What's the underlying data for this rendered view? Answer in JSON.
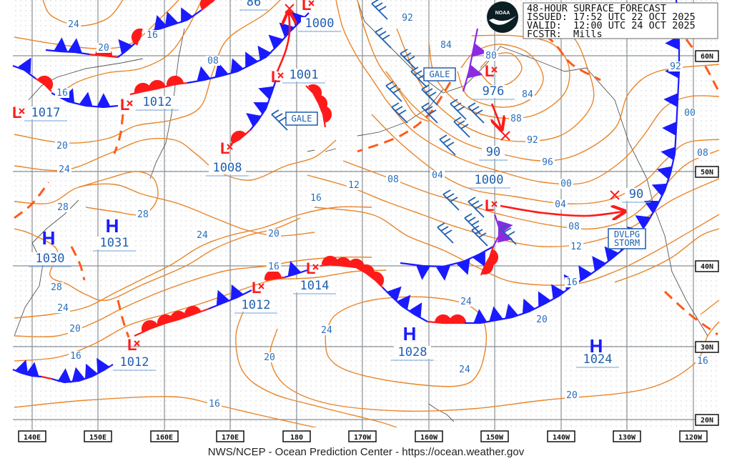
{
  "header": {
    "title": "48-HOUR SURFACE FORECAST",
    "issued": "ISSUED: 17:52 UTC 22 OCT 2025",
    "valid": "VALID:  12:00 UTC 24 OCT 2025",
    "forecaster": "FCSTR:  Mills"
  },
  "logo_text": "NOAA",
  "footer": "NWS/NCEP - Ocean Prediction Center - https://ocean.weather.gov",
  "longitude_labels": [
    "140E",
    "150E",
    "160E",
    "170E",
    "180",
    "170W",
    "160W",
    "150W",
    "140W",
    "130W",
    "120W"
  ],
  "latitude_labels": [
    "60N",
    "50N",
    "40N",
    "30N",
    "20N"
  ],
  "pressure_centers": [
    {
      "symbol": "L",
      "value": "1017"
    },
    {
      "symbol": "L",
      "value": "1012"
    },
    {
      "symbol": "L",
      "value": "1001"
    },
    {
      "symbol": "L",
      "value": "1008"
    },
    {
      "symbol": "L",
      "value": "1000"
    },
    {
      "symbol": "L",
      "value": "976"
    },
    {
      "symbol": "L",
      "value": "1000"
    },
    {
      "symbol": "L",
      "value": "1012"
    },
    {
      "symbol": "L",
      "value": "1012"
    },
    {
      "symbol": "L",
      "value": "1014"
    },
    {
      "symbol": "H",
      "value": "1030"
    },
    {
      "symbol": "H",
      "value": "1031"
    },
    {
      "symbol": "H",
      "value": "1028"
    },
    {
      "symbol": "H",
      "value": "1024"
    }
  ],
  "forecast_positions": [
    {
      "value": "86"
    },
    {
      "value": "90"
    },
    {
      "value": "90"
    }
  ],
  "isobar_labels": [
    "24",
    "20",
    "16",
    "16",
    "08",
    "20",
    "24",
    "28",
    "28",
    "28",
    "24",
    "20",
    "16",
    "24",
    "20",
    "16",
    "16",
    "12",
    "08",
    "04",
    "92",
    "84",
    "80",
    "84",
    "88",
    "92",
    "96",
    "00",
    "04",
    "08",
    "12",
    "16",
    "92",
    "00",
    "08",
    "24",
    "24",
    "20",
    "24",
    "20",
    "20",
    "16",
    "16",
    "16"
  ],
  "warnings": [
    {
      "lines": [
        "GALE"
      ]
    },
    {
      "lines": [
        "GALE"
      ]
    },
    {
      "lines": [
        "DVLPG",
        "STORM"
      ]
    }
  ],
  "colors": {
    "isobar": "#e8862a",
    "isobar_label": "#2a6ebb",
    "cold_front": "#1a1aff",
    "warm_front": "#ff1a1a",
    "occluded_front": "#8a2be2",
    "trough": "#ff5a1a",
    "high": "#1a1aff",
    "low": "#ff1a1a"
  }
}
